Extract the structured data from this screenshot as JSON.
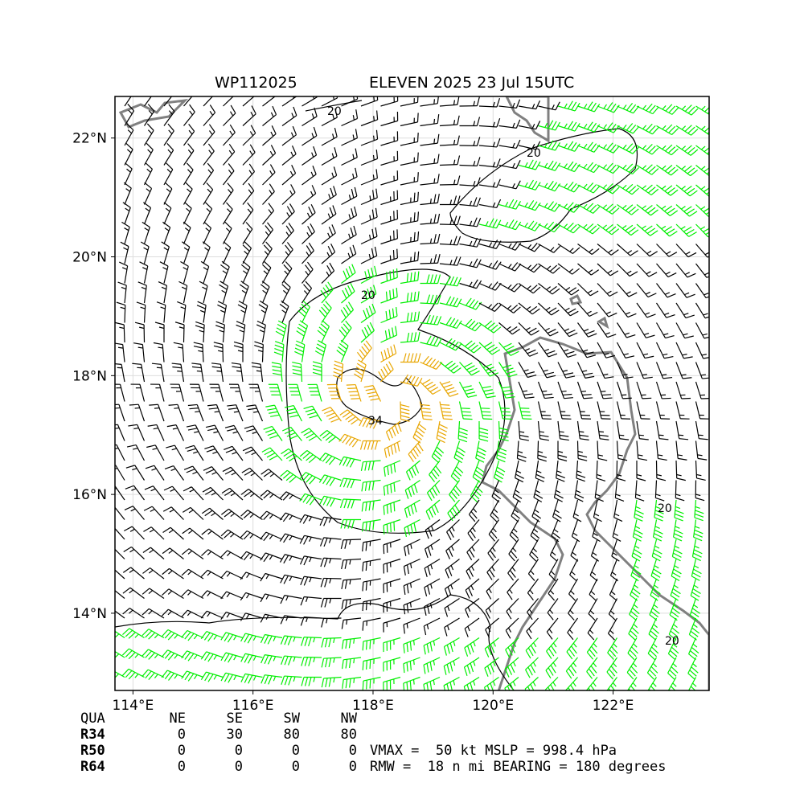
{
  "title": {
    "storm_id": "WP112025",
    "storm_label": "ELEVEN 2025 23 Jul 15UTC"
  },
  "map": {
    "lon_range": [
      113.7,
      123.6
    ],
    "lat_range": [
      12.7,
      22.7
    ],
    "lon_ticks": [
      {
        "value": 114,
        "label": "114°E"
      },
      {
        "value": 116,
        "label": "116°E"
      },
      {
        "value": 118,
        "label": "118°E"
      },
      {
        "value": 120,
        "label": "120°E"
      },
      {
        "value": 122,
        "label": "122°E"
      }
    ],
    "lat_ticks": [
      {
        "value": 14,
        "label": "14°N"
      },
      {
        "value": 16,
        "label": "16°N"
      },
      {
        "value": 18,
        "label": "18°N"
      },
      {
        "value": 20,
        "label": "20°N"
      },
      {
        "value": 22,
        "label": "22°N"
      }
    ],
    "storm_center": {
      "lon": 118.3,
      "lat": 17.6
    },
    "contour_labels": [
      "20",
      "34"
    ],
    "colors": {
      "below_34kt": "#000000",
      "34kt": "#00ee00",
      "50kt": "#e8a600",
      "coastline": "#808080",
      "grid": "#dddddd"
    }
  },
  "radii_table": {
    "headers": [
      "QUA",
      "NE",
      "SE",
      "SW",
      "NW"
    ],
    "rows": [
      {
        "label": "R34",
        "values": [
          "0",
          "30",
          "80",
          "80"
        ]
      },
      {
        "label": "R50",
        "values": [
          "0",
          "0",
          "0",
          "0"
        ]
      },
      {
        "label": "R64",
        "values": [
          "0",
          "0",
          "0",
          "0"
        ]
      }
    ]
  },
  "stats": {
    "line1": "VMAX =  50 kt MSLP = 998.4 hPa",
    "line2": "RMW =  18 n mi BEARING = 180 degrees"
  }
}
